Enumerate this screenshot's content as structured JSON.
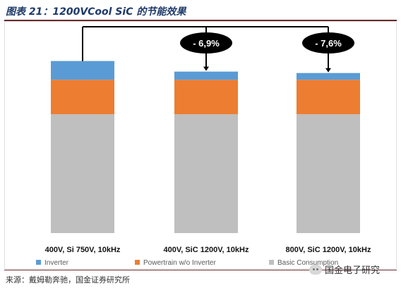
{
  "figure": {
    "title": "图表 21：1200VCool SiC 的节能效果",
    "source": "来源：戴姆勒奔驰，国金证券研究所",
    "watermark": "国金电子研究"
  },
  "chart_data": {
    "type": "bar",
    "stacked": true,
    "categories": [
      "400V, Si 750V, 10kHz",
      "400V, SiC 1200V, 10kHz",
      "800V, SiC 1200V, 10kHz"
    ],
    "series": [
      {
        "name": "Basic Consumption",
        "values": [
          100,
          100,
          100
        ],
        "color": "#bfbfbf"
      },
      {
        "name": "Powertrain w/o Inverter",
        "values": [
          29,
          29,
          29
        ],
        "color": "#ed7d31"
      },
      {
        "name": "Inverter",
        "values": [
          15.8,
          6.9,
          5.7
        ],
        "color": "#5b9bd5"
      }
    ],
    "ylim": [
      0,
      160
    ],
    "grid": false,
    "legend_position": "bottom",
    "annotations": [
      {
        "label": "- 6,9%",
        "from_category": 0,
        "to_category": 1
      },
      {
        "label": "- 7,6%",
        "from_category": 0,
        "to_category": 2
      }
    ]
  }
}
